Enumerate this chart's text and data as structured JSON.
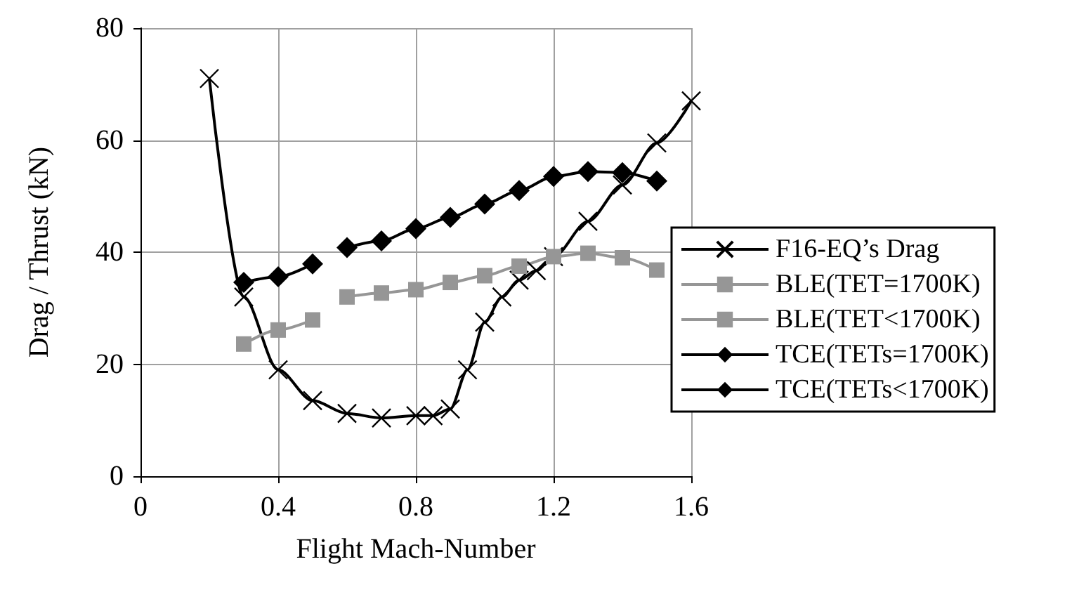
{
  "chart_data": {
    "type": "line",
    "xlabel": "Flight Mach-Number",
    "ylabel": "Drag / Thrust (kN)",
    "xlim": [
      0,
      1.6
    ],
    "xticks": [
      0,
      0.4,
      0.8,
      1.2,
      1.6
    ],
    "ylim": [
      0,
      80
    ],
    "yticks": [
      0,
      20,
      40,
      60,
      80
    ],
    "grid": true,
    "legend": "right",
    "series": [
      {
        "name": "F16-EQ’s Drag",
        "color": "#000000",
        "marker": "cross",
        "x": [
          0.2,
          0.3,
          0.4,
          0.5,
          0.6,
          0.7,
          0.8,
          0.85,
          0.9,
          0.95,
          1.0,
          1.05,
          1.1,
          1.15,
          1.2,
          1.3,
          1.4,
          1.5,
          1.6
        ],
        "values": [
          71,
          32,
          19,
          13.5,
          11.2,
          10.4,
          10.8,
          10.8,
          12,
          19,
          27.5,
          32,
          35,
          36.7,
          39.2,
          45.5,
          52,
          59.5,
          67
        ]
      },
      {
        "name": "BLE(TET=1700K)",
        "color": "#969696",
        "marker": "square",
        "x": [
          0.6,
          0.7,
          0.8,
          0.9,
          1.0,
          1.1,
          1.2,
          1.3,
          1.4,
          1.5
        ],
        "values": [
          32,
          32.7,
          33.3,
          34.6,
          35.8,
          37.5,
          39.2,
          39.8,
          39,
          36.8
        ]
      },
      {
        "name": "BLE(TET<1700K)",
        "color": "#969696",
        "marker": "square",
        "x": [
          0.3,
          0.4,
          0.5
        ],
        "values": [
          23.6,
          26.1,
          27.9
        ]
      },
      {
        "name": "TCE(TETs=1700K)",
        "color": "#000000",
        "marker": "diamond",
        "x": [
          0.6,
          0.7,
          0.8,
          0.9,
          1.0,
          1.1,
          1.2,
          1.3,
          1.4,
          1.5
        ],
        "values": [
          40.8,
          42,
          44.2,
          46.2,
          48.6,
          51,
          53.5,
          54.4,
          54.2,
          52.7
        ]
      },
      {
        "name": "TCE(TETs<1700K)",
        "color": "#000000",
        "marker": "diamond",
        "x": [
          0.3,
          0.4,
          0.5
        ],
        "values": [
          34.6,
          35.6,
          37.9
        ]
      }
    ]
  }
}
